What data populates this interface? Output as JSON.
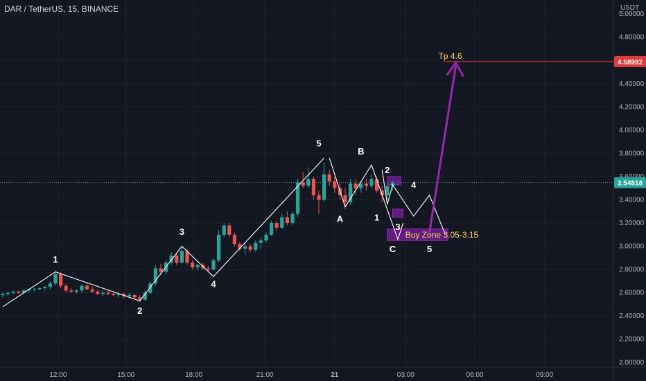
{
  "header": {
    "title": "DAR / TetherUS, 15, BINANCE"
  },
  "currency": "USDT",
  "colors": {
    "background": "#131722",
    "grid": "#1e222d",
    "up": "#26a69a",
    "down": "#ef5350",
    "wave": "#ffffff",
    "arrow": "#9c27b0",
    "zone": "#7b1fa2",
    "tp_line": "#e53935",
    "tp_text": "#ffd54f",
    "price_line": "#26a69a"
  },
  "annotations": {
    "tp_label": "Tp 4.6",
    "buy_zone_label": "Buy Zone 3.05-3.15"
  },
  "chart_data": {
    "type": "candlestick",
    "ylim": [
      1.96,
      5.12
    ],
    "y_ticks": [
      "5.00000",
      "4.80000",
      "4.60000",
      "4.40000",
      "4.20000",
      "4.00000",
      "3.80000",
      "3.60000",
      "3.40000",
      "3.20000",
      "3.00000",
      "2.80000",
      "2.60000",
      "2.40000",
      "2.20000",
      "2.00000"
    ],
    "y_tick_values": [
      5.0,
      4.8,
      4.6,
      4.4,
      4.2,
      4.0,
      3.8,
      3.6,
      3.4,
      3.2,
      3.0,
      2.8,
      2.6,
      2.4,
      2.2,
      2.0
    ],
    "x_ticks": [
      {
        "label": "12:00",
        "t": 0.09
      },
      {
        "label": "15:00",
        "t": 0.195
      },
      {
        "label": "18:00",
        "t": 0.3
      },
      {
        "label": "21:00",
        "t": 0.41
      },
      {
        "label": "21",
        "t": 0.518
      },
      {
        "label": "03:00",
        "t": 0.628
      },
      {
        "label": "06:00",
        "t": 0.735
      },
      {
        "label": "09:00",
        "t": 0.843
      }
    ],
    "price_badges": [
      {
        "label": "4.58992",
        "value": 4.58992,
        "color": "#e53935"
      },
      {
        "label": "3.54818",
        "value": 3.54818,
        "color": "#26a69a"
      }
    ],
    "candles": [
      [
        2.58,
        2.6,
        2.56,
        2.59
      ],
      [
        2.59,
        2.61,
        2.57,
        2.6
      ],
      [
        2.6,
        2.62,
        2.59,
        2.61
      ],
      [
        2.61,
        2.62,
        2.59,
        2.6
      ],
      [
        2.6,
        2.63,
        2.59,
        2.62
      ],
      [
        2.62,
        2.64,
        2.6,
        2.63
      ],
      [
        2.63,
        2.64,
        2.61,
        2.63
      ],
      [
        2.63,
        2.65,
        2.62,
        2.64
      ],
      [
        2.64,
        2.66,
        2.62,
        2.65
      ],
      [
        2.65,
        2.7,
        2.63,
        2.68
      ],
      [
        2.68,
        2.79,
        2.66,
        2.76
      ],
      [
        2.76,
        2.78,
        2.64,
        2.66
      ],
      [
        2.66,
        2.68,
        2.6,
        2.62
      ],
      [
        2.62,
        2.64,
        2.6,
        2.61
      ],
      [
        2.61,
        2.63,
        2.59,
        2.62
      ],
      [
        2.62,
        2.67,
        2.6,
        2.66
      ],
      [
        2.66,
        2.69,
        2.62,
        2.63
      ],
      [
        2.63,
        2.65,
        2.6,
        2.61
      ],
      [
        2.61,
        2.63,
        2.58,
        2.59
      ],
      [
        2.59,
        2.62,
        2.57,
        2.6
      ],
      [
        2.6,
        2.62,
        2.58,
        2.59
      ],
      [
        2.59,
        2.61,
        2.57,
        2.58
      ],
      [
        2.58,
        2.6,
        2.56,
        2.59
      ],
      [
        2.59,
        2.6,
        2.55,
        2.57
      ],
      [
        2.57,
        2.6,
        2.55,
        2.58
      ],
      [
        2.58,
        2.59,
        2.55,
        2.56
      ],
      [
        2.56,
        2.58,
        2.52,
        2.54
      ],
      [
        2.54,
        2.62,
        2.53,
        2.6
      ],
      [
        2.6,
        2.7,
        2.59,
        2.68
      ],
      [
        2.68,
        2.84,
        2.66,
        2.81
      ],
      [
        2.81,
        2.85,
        2.75,
        2.78
      ],
      [
        2.78,
        2.88,
        2.76,
        2.86
      ],
      [
        2.86,
        2.95,
        2.84,
        2.92
      ],
      [
        2.92,
        2.94,
        2.84,
        2.86
      ],
      [
        2.86,
        3.0,
        2.85,
        2.96
      ],
      [
        2.96,
        2.98,
        2.84,
        2.86
      ],
      [
        2.86,
        2.88,
        2.8,
        2.82
      ],
      [
        2.82,
        2.85,
        2.79,
        2.84
      ],
      [
        2.84,
        2.86,
        2.8,
        2.81
      ],
      [
        2.81,
        2.83,
        2.78,
        2.8
      ],
      [
        2.8,
        2.9,
        2.79,
        2.88
      ],
      [
        2.88,
        3.14,
        2.86,
        3.1
      ],
      [
        3.1,
        3.2,
        3.08,
        3.18
      ],
      [
        3.18,
        3.2,
        3.08,
        3.1
      ],
      [
        3.1,
        3.12,
        3.0,
        3.02
      ],
      [
        3.02,
        3.04,
        2.96,
        2.98
      ],
      [
        2.98,
        3.02,
        2.93,
        3.0
      ],
      [
        3.0,
        3.02,
        2.95,
        2.97
      ],
      [
        2.97,
        3.05,
        2.95,
        3.03
      ],
      [
        3.03,
        3.08,
        2.98,
        3.05
      ],
      [
        3.05,
        3.12,
        3.03,
        3.1
      ],
      [
        3.1,
        3.22,
        3.09,
        3.2
      ],
      [
        3.2,
        3.22,
        3.14,
        3.16
      ],
      [
        3.16,
        3.28,
        3.15,
        3.25
      ],
      [
        3.25,
        3.3,
        3.18,
        3.2
      ],
      [
        3.2,
        3.3,
        3.18,
        3.28
      ],
      [
        3.28,
        3.58,
        3.25,
        3.55
      ],
      [
        3.55,
        3.64,
        3.5,
        3.52
      ],
      [
        3.52,
        3.68,
        3.5,
        3.58
      ],
      [
        3.58,
        3.6,
        3.4,
        3.44
      ],
      [
        3.44,
        3.48,
        3.28,
        3.4
      ],
      [
        3.4,
        3.72,
        3.38,
        3.62
      ],
      [
        3.62,
        3.66,
        3.52,
        3.56
      ],
      [
        3.56,
        3.6,
        3.46,
        3.5
      ],
      [
        3.5,
        3.54,
        3.4,
        3.44
      ],
      [
        3.44,
        3.5,
        3.32,
        3.38
      ],
      [
        3.38,
        3.58,
        3.36,
        3.54
      ],
      [
        3.54,
        3.58,
        3.44,
        3.5
      ],
      [
        3.5,
        3.56,
        3.46,
        3.54
      ],
      [
        3.54,
        3.58,
        3.48,
        3.52
      ],
      [
        3.52,
        3.62,
        3.5,
        3.58
      ],
      [
        3.58,
        3.6,
        3.46,
        3.48
      ],
      [
        3.48,
        3.52,
        3.38,
        3.44
      ],
      [
        3.44,
        3.54,
        3.4,
        3.52
      ],
      [
        3.52,
        3.56,
        3.48,
        3.55
      ]
    ],
    "waves": [
      {
        "points": [
          [
            0,
            2.48
          ],
          [
            10,
            2.78
          ],
          [
            26,
            2.53
          ],
          [
            34,
            3.0
          ],
          [
            40,
            2.74
          ],
          [
            61,
            3.76
          ]
        ]
      },
      {
        "points": [
          [
            62,
            3.76
          ],
          [
            65,
            3.34
          ],
          [
            70,
            3.7
          ],
          [
            75,
            3.06
          ],
          [
            76,
            3.2
          ]
        ]
      },
      {
        "points": [
          [
            72,
            3.66
          ],
          [
            73,
            3.36
          ],
          [
            74,
            3.53
          ],
          [
            78,
            3.26
          ],
          [
            81,
            3.44
          ],
          [
            84,
            3.1
          ]
        ]
      }
    ],
    "wave_labels": [
      {
        "text": "1",
        "i": 10,
        "v": 2.86
      },
      {
        "text": "2",
        "i": 26,
        "v": 2.42
      },
      {
        "text": "3",
        "i": 34,
        "v": 3.1
      },
      {
        "text": "4",
        "i": 40,
        "v": 2.65
      },
      {
        "text": "5",
        "i": 60,
        "v": 3.86
      },
      {
        "text": "A",
        "i": 64,
        "v": 3.21
      },
      {
        "text": "B",
        "i": 68,
        "v": 3.79
      },
      {
        "text": "1",
        "i": 71,
        "v": 3.22
      },
      {
        "text": "C",
        "i": 74,
        "v": 2.95
      },
      {
        "text": "2",
        "i": 73,
        "v": 3.63
      },
      {
        "text": "3",
        "i": 75,
        "v": 3.14
      },
      {
        "text": "4",
        "i": 78,
        "v": 3.5
      },
      {
        "text": "5",
        "i": 81,
        "v": 2.95
      }
    ],
    "zones": [
      {
        "i0": 73,
        "i1": 75.5,
        "v0": 3.53,
        "v1": 3.6
      },
      {
        "i0": 74,
        "i1": 76,
        "v0": 3.25,
        "v1": 3.32
      },
      {
        "i0": 73,
        "i1": 84.5,
        "v0": 3.05,
        "v1": 3.15
      }
    ],
    "arrow": {
      "from": [
        81,
        3.12
      ],
      "to": [
        86,
        4.58
      ]
    },
    "tp_level": 4.58992,
    "last_price": 3.54818
  }
}
